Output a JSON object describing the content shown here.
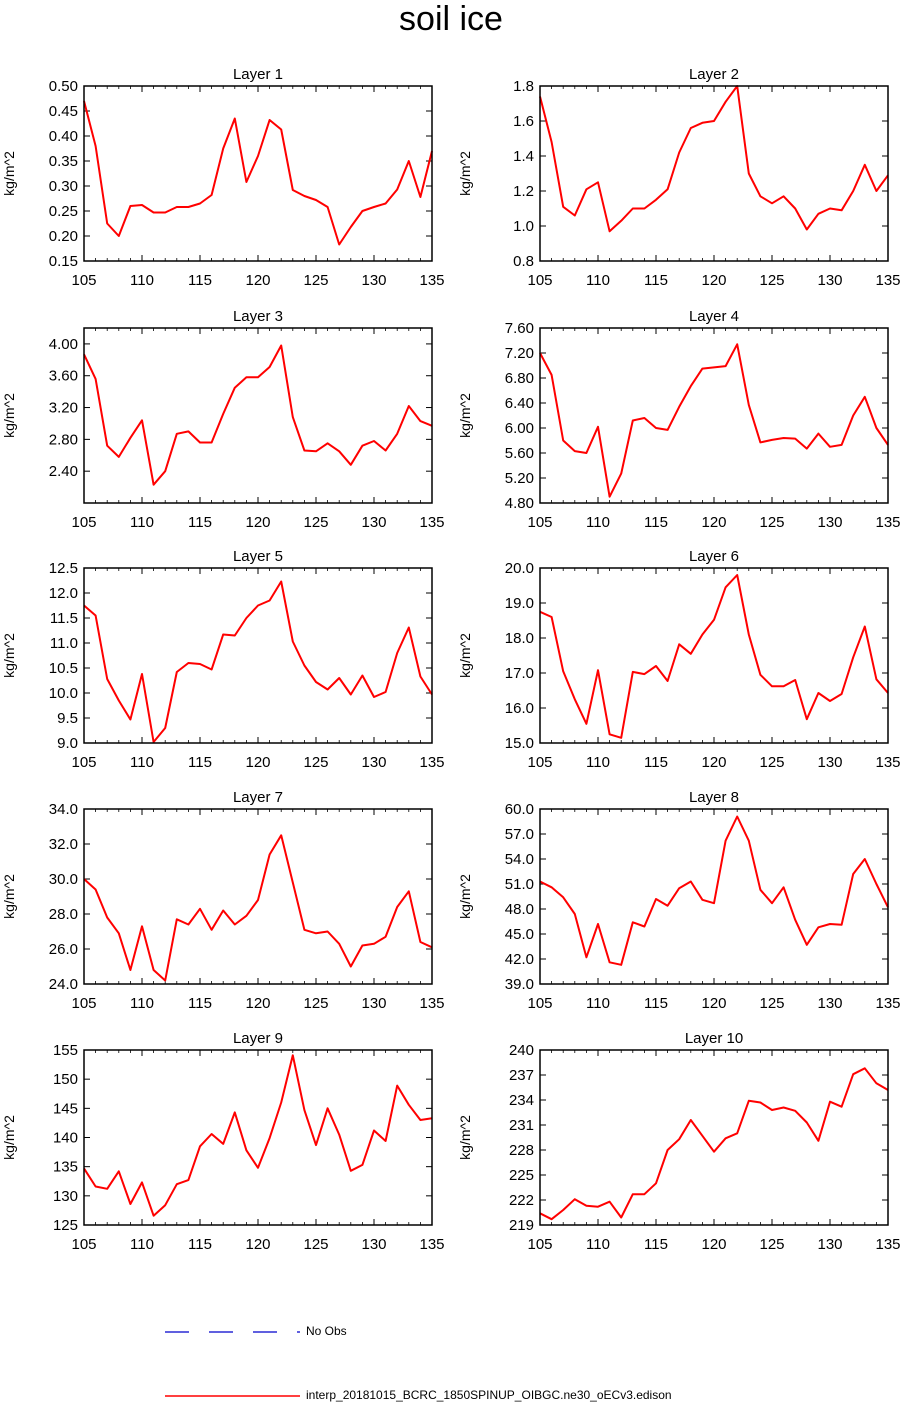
{
  "title": "soil ice",
  "legend": {
    "obs_label": "No Obs",
    "obs_color": "#0000cc",
    "model_label": "interp_20181015_BCRC_1850SPINUP_OIBGC.ne30_oECv3.edison",
    "model_color": "#ff0000"
  },
  "chart_data": [
    {
      "type": "line",
      "title": "Layer 1",
      "ylabel": "kg/m^2",
      "xlim": [
        105,
        135
      ],
      "ylim": [
        0.15,
        0.5
      ],
      "xticks": [
        "105",
        "110",
        "115",
        "120",
        "125",
        "130",
        "135"
      ],
      "yticks": [
        "0.15",
        "0.20",
        "0.25",
        "0.30",
        "0.35",
        "0.40",
        "0.45",
        "0.50"
      ],
      "x": [
        105,
        106,
        107,
        108,
        109,
        110,
        111,
        112,
        113,
        114,
        115,
        116,
        117,
        118,
        119,
        120,
        121,
        122,
        123,
        124,
        125,
        126,
        127,
        128,
        129,
        130,
        131,
        132,
        133,
        134,
        135
      ],
      "series": [
        {
          "name": "interp_20181015_BCRC_1850SPINUP_OIBGC.ne30_oECv3.edison",
          "values": [
            0.47,
            0.38,
            0.225,
            0.2,
            0.26,
            0.262,
            0.247,
            0.247,
            0.258,
            0.258,
            0.265,
            0.282,
            0.375,
            0.435,
            0.308,
            0.36,
            0.432,
            0.413,
            0.292,
            0.28,
            0.272,
            0.258,
            0.183,
            0.218,
            0.25,
            0.258,
            0.265,
            0.293,
            0.35,
            0.278,
            0.37
          ]
        }
      ]
    },
    {
      "type": "line",
      "title": "Layer 2",
      "ylabel": "kg/m^2",
      "xlim": [
        105,
        135
      ],
      "ylim": [
        0.8,
        1.8
      ],
      "xticks": [
        "105",
        "110",
        "115",
        "120",
        "125",
        "130",
        "135"
      ],
      "yticks": [
        "0.8",
        "1.0",
        "1.2",
        "1.4",
        "1.6",
        "1.8"
      ],
      "x": [
        105,
        106,
        107,
        108,
        109,
        110,
        111,
        112,
        113,
        114,
        115,
        116,
        117,
        118,
        119,
        120,
        121,
        122,
        123,
        124,
        125,
        126,
        127,
        128,
        129,
        130,
        131,
        132,
        133,
        134,
        135
      ],
      "series": [
        {
          "name": "interp_20181015_BCRC_1850SPINUP_OIBGC.ne30_oECv3.edison",
          "values": [
            1.74,
            1.48,
            1.11,
            1.06,
            1.21,
            1.25,
            0.97,
            1.03,
            1.1,
            1.1,
            1.15,
            1.21,
            1.42,
            1.56,
            1.59,
            1.6,
            1.71,
            1.8,
            1.3,
            1.17,
            1.13,
            1.17,
            1.1,
            0.98,
            1.07,
            1.1,
            1.09,
            1.2,
            1.35,
            1.2,
            1.29
          ]
        }
      ]
    },
    {
      "type": "line",
      "title": "Layer 3",
      "ylabel": "kg/m^2",
      "xlim": [
        105,
        135
      ],
      "ylim": [
        2.0,
        4.2
      ],
      "xticks": [
        "105",
        "110",
        "115",
        "120",
        "125",
        "130",
        "135"
      ],
      "yticks": [
        "2.40",
        "2.80",
        "3.20",
        "3.60",
        "4.00"
      ],
      "x": [
        105,
        106,
        107,
        108,
        109,
        110,
        111,
        112,
        113,
        114,
        115,
        116,
        117,
        118,
        119,
        120,
        121,
        122,
        123,
        124,
        125,
        126,
        127,
        128,
        129,
        130,
        131,
        132,
        133,
        134,
        135
      ],
      "series": [
        {
          "name": "interp_20181015_BCRC_1850SPINUP_OIBGC.ne30_oECv3.edison",
          "values": [
            3.87,
            3.56,
            2.72,
            2.58,
            2.82,
            3.04,
            2.23,
            2.4,
            2.87,
            2.9,
            2.76,
            2.76,
            3.12,
            3.45,
            3.58,
            3.58,
            3.71,
            3.98,
            3.08,
            2.66,
            2.65,
            2.75,
            2.65,
            2.48,
            2.72,
            2.78,
            2.66,
            2.87,
            3.22,
            3.03,
            2.97
          ]
        }
      ]
    },
    {
      "type": "line",
      "title": "Layer 4",
      "ylabel": "kg/m^2",
      "xlim": [
        105,
        135
      ],
      "ylim": [
        4.8,
        7.6
      ],
      "xticks": [
        "105",
        "110",
        "115",
        "120",
        "125",
        "130",
        "135"
      ],
      "yticks": [
        "4.80",
        "5.20",
        "5.60",
        "6.00",
        "6.40",
        "6.80",
        "7.20",
        "7.60"
      ],
      "x": [
        105,
        106,
        107,
        108,
        109,
        110,
        111,
        112,
        113,
        114,
        115,
        116,
        117,
        118,
        119,
        120,
        121,
        122,
        123,
        124,
        125,
        126,
        127,
        128,
        129,
        130,
        131,
        132,
        133,
        134,
        135
      ],
      "series": [
        {
          "name": "interp_20181015_BCRC_1850SPINUP_OIBGC.ne30_oECv3.edison",
          "values": [
            7.2,
            6.85,
            5.8,
            5.63,
            5.6,
            6.02,
            4.9,
            5.27,
            6.12,
            6.16,
            6.0,
            5.97,
            6.34,
            6.67,
            6.95,
            6.97,
            6.99,
            7.34,
            6.37,
            5.77,
            5.81,
            5.84,
            5.83,
            5.67,
            5.91,
            5.7,
            5.73,
            6.2,
            6.5,
            6.0,
            5.73
          ]
        }
      ]
    },
    {
      "type": "line",
      "title": "Layer 5",
      "ylabel": "kg/m^2",
      "xlim": [
        105,
        135
      ],
      "ylim": [
        9.0,
        12.5
      ],
      "xticks": [
        "105",
        "110",
        "115",
        "120",
        "125",
        "130",
        "135"
      ],
      "yticks": [
        "9.0",
        "9.5",
        "10.0",
        "10.5",
        "11.0",
        "11.5",
        "12.0",
        "12.5"
      ],
      "x": [
        105,
        106,
        107,
        108,
        109,
        110,
        111,
        112,
        113,
        114,
        115,
        116,
        117,
        118,
        119,
        120,
        121,
        122,
        123,
        124,
        125,
        126,
        127,
        128,
        129,
        130,
        131,
        132,
        133,
        134,
        135
      ],
      "series": [
        {
          "name": "interp_20181015_BCRC_1850SPINUP_OIBGC.ne30_oECv3.edison",
          "values": [
            11.75,
            11.55,
            10.28,
            9.85,
            9.47,
            10.38,
            9.02,
            9.3,
            10.42,
            10.6,
            10.58,
            10.47,
            11.17,
            11.15,
            11.5,
            11.75,
            11.85,
            12.23,
            11.03,
            10.55,
            10.22,
            10.07,
            10.3,
            9.97,
            10.35,
            9.92,
            10.02,
            10.8,
            11.31,
            10.33,
            9.97
          ]
        }
      ]
    },
    {
      "type": "line",
      "title": "Layer 6",
      "ylabel": "kg/m^2",
      "xlim": [
        105,
        135
      ],
      "ylim": [
        15.0,
        20.0
      ],
      "xticks": [
        "105",
        "110",
        "115",
        "120",
        "125",
        "130",
        "135"
      ],
      "yticks": [
        "15.0",
        "16.0",
        "17.0",
        "18.0",
        "19.0",
        "20.0"
      ],
      "x": [
        105,
        106,
        107,
        108,
        109,
        110,
        111,
        112,
        113,
        114,
        115,
        116,
        117,
        118,
        119,
        120,
        121,
        122,
        123,
        124,
        125,
        126,
        127,
        128,
        129,
        130,
        131,
        132,
        133,
        134,
        135
      ],
      "series": [
        {
          "name": "interp_20181015_BCRC_1850SPINUP_OIBGC.ne30_oECv3.edison",
          "values": [
            18.75,
            18.6,
            17.05,
            16.25,
            15.55,
            17.08,
            15.25,
            15.15,
            17.03,
            16.97,
            17.2,
            16.77,
            17.82,
            17.55,
            18.1,
            18.52,
            19.45,
            19.8,
            18.1,
            16.95,
            16.62,
            16.62,
            16.8,
            15.68,
            16.43,
            16.2,
            16.4,
            17.45,
            18.33,
            16.82,
            16.43
          ]
        }
      ]
    },
    {
      "type": "line",
      "title": "Layer 7",
      "ylabel": "kg/m^2",
      "xlim": [
        105,
        135
      ],
      "ylim": [
        24.0,
        34.0
      ],
      "xticks": [
        "105",
        "110",
        "115",
        "120",
        "125",
        "130",
        "135"
      ],
      "yticks": [
        "24.0",
        "26.0",
        "28.0",
        "30.0",
        "32.0",
        "34.0"
      ],
      "x": [
        105,
        106,
        107,
        108,
        109,
        110,
        111,
        112,
        113,
        114,
        115,
        116,
        117,
        118,
        119,
        120,
        121,
        122,
        123,
        124,
        125,
        126,
        127,
        128,
        129,
        130,
        131,
        132,
        133,
        134,
        135
      ],
      "series": [
        {
          "name": "interp_20181015_BCRC_1850SPINUP_OIBGC.ne30_oECv3.edison",
          "values": [
            30.0,
            29.4,
            27.8,
            26.9,
            24.8,
            27.3,
            24.8,
            24.2,
            27.7,
            27.4,
            28.3,
            27.1,
            28.2,
            27.4,
            27.9,
            28.8,
            31.4,
            32.5,
            29.8,
            27.1,
            26.9,
            27.0,
            26.3,
            25.0,
            26.2,
            26.3,
            26.7,
            28.4,
            29.3,
            26.4,
            26.1
          ]
        }
      ]
    },
    {
      "type": "line",
      "title": "Layer 8",
      "ylabel": "kg/m^2",
      "xlim": [
        105,
        135
      ],
      "ylim": [
        39.0,
        60.0
      ],
      "xticks": [
        "105",
        "110",
        "115",
        "120",
        "125",
        "130",
        "135"
      ],
      "yticks": [
        "39.0",
        "42.0",
        "45.0",
        "48.0",
        "51.0",
        "54.0",
        "57.0",
        "60.0"
      ],
      "x": [
        105,
        106,
        107,
        108,
        109,
        110,
        111,
        112,
        113,
        114,
        115,
        116,
        117,
        118,
        119,
        120,
        121,
        122,
        123,
        124,
        125,
        126,
        127,
        128,
        129,
        130,
        131,
        132,
        133,
        134,
        135
      ],
      "series": [
        {
          "name": "interp_20181015_BCRC_1850SPINUP_OIBGC.ne30_oECv3.edison",
          "values": [
            51.3,
            50.6,
            49.4,
            47.4,
            42.2,
            46.2,
            41.6,
            41.3,
            46.4,
            45.9,
            49.2,
            48.4,
            50.5,
            51.3,
            49.1,
            48.7,
            56.2,
            59.1,
            56.2,
            50.3,
            48.7,
            50.6,
            46.7,
            43.7,
            45.8,
            46.2,
            46.1,
            52.2,
            54.0,
            51.0,
            48.2
          ]
        }
      ]
    },
    {
      "type": "line",
      "title": "Layer 9",
      "ylabel": "kg/m^2",
      "xlim": [
        105,
        135
      ],
      "ylim": [
        125,
        155
      ],
      "xticks": [
        "105",
        "110",
        "115",
        "120",
        "125",
        "130",
        "135"
      ],
      "yticks": [
        "125",
        "130",
        "135",
        "140",
        "145",
        "150",
        "155"
      ],
      "x": [
        105,
        106,
        107,
        108,
        109,
        110,
        111,
        112,
        113,
        114,
        115,
        116,
        117,
        118,
        119,
        120,
        121,
        122,
        123,
        124,
        125,
        126,
        127,
        128,
        129,
        130,
        131,
        132,
        133,
        134,
        135
      ],
      "series": [
        {
          "name": "interp_20181015_BCRC_1850SPINUP_OIBGC.ne30_oECv3.edison",
          "values": [
            134.7,
            131.6,
            131.2,
            134.2,
            128.6,
            132.3,
            126.6,
            128.4,
            132.0,
            132.7,
            138.5,
            140.6,
            138.9,
            144.3,
            137.8,
            134.8,
            139.9,
            146.0,
            154.1,
            144.7,
            138.7,
            145.0,
            140.5,
            134.3,
            135.3,
            141.2,
            139.4,
            148.9,
            145.6,
            143.0,
            143.3
          ]
        }
      ]
    },
    {
      "type": "line",
      "title": "Layer 10",
      "ylabel": "kg/m^2",
      "xlim": [
        105,
        135
      ],
      "ylim": [
        219,
        240
      ],
      "xticks": [
        "105",
        "110",
        "115",
        "120",
        "125",
        "130",
        "135"
      ],
      "yticks": [
        "219",
        "222",
        "225",
        "228",
        "231",
        "234",
        "237",
        "240"
      ],
      "x": [
        105,
        106,
        107,
        108,
        109,
        110,
        111,
        112,
        113,
        114,
        115,
        116,
        117,
        118,
        119,
        120,
        121,
        122,
        123,
        124,
        125,
        126,
        127,
        128,
        129,
        130,
        131,
        132,
        133,
        134,
        135
      ],
      "series": [
        {
          "name": "interp_20181015_BCRC_1850SPINUP_OIBGC.ne30_oECv3.edison",
          "values": [
            220.4,
            219.7,
            220.8,
            222.1,
            221.3,
            221.2,
            221.8,
            219.9,
            222.7,
            222.7,
            224.0,
            228.0,
            229.3,
            231.6,
            229.7,
            227.8,
            229.4,
            230.0,
            233.9,
            233.7,
            232.8,
            233.1,
            232.7,
            231.3,
            229.1,
            233.8,
            233.2,
            237.1,
            237.8,
            236.0,
            235.2
          ]
        }
      ]
    }
  ]
}
